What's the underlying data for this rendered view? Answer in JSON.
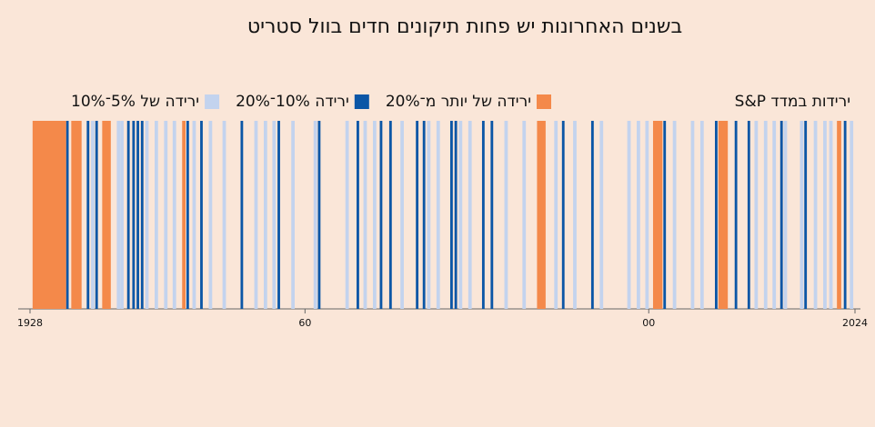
{
  "chart_data": {
    "type": "barcode",
    "title": "בשנים האחרונות יש פחות תיקונים חדים בוול סטריט",
    "legend_title": "ירידות במדד S&P",
    "xlim": [
      1928,
      2024
    ],
    "xticks": [
      1928,
      {
        "value": 1960,
        "label": "60"
      },
      {
        "value": 2000,
        "label": "00"
      },
      2024
    ],
    "series": [
      {
        "name": "ירידה של יותר מ־20%",
        "color": "#f4894a",
        "intervals": [
          [
            1928.3,
            1932.2
          ],
          [
            1932.8,
            1934.0
          ],
          [
            1936.4,
            1937.4
          ],
          [
            1945.7,
            1946.1
          ],
          [
            1987.0,
            1988.0
          ],
          [
            2000.5,
            2001.6
          ],
          [
            2008.1,
            2009.2
          ],
          [
            2021.9,
            2022.4
          ]
        ]
      },
      {
        "name": "ירידה 10%־20%",
        "color": "#0b56a6",
        "intervals": [
          [
            1932.2,
            1932.5
          ],
          [
            1934.6,
            1934.9
          ],
          [
            1935.6,
            1935.9
          ],
          [
            1939.3,
            1939.6
          ],
          [
            1939.9,
            1940.2
          ],
          [
            1940.4,
            1940.7
          ],
          [
            1940.9,
            1941.2
          ],
          [
            1946.2,
            1946.5
          ],
          [
            1947.8,
            1948.1
          ],
          [
            1952.5,
            1952.8
          ],
          [
            1956.8,
            1957.1
          ],
          [
            1961.5,
            1961.8
          ],
          [
            1966.0,
            1966.3
          ],
          [
            1968.7,
            1969.0
          ],
          [
            1969.8,
            1970.1
          ],
          [
            1972.9,
            1973.2
          ],
          [
            1973.7,
            1974.0
          ],
          [
            1976.9,
            1977.2
          ],
          [
            1977.4,
            1977.7
          ],
          [
            1980.6,
            1980.9
          ],
          [
            1981.6,
            1981.9
          ],
          [
            1989.9,
            1990.2
          ],
          [
            1993.3,
            1993.6
          ],
          [
            2001.7,
            2002.0
          ],
          [
            2007.7,
            2008.0
          ],
          [
            2010.0,
            2010.3
          ],
          [
            2011.5,
            2011.8
          ],
          [
            2015.3,
            2015.6
          ],
          [
            2018.1,
            2018.4
          ],
          [
            2022.7,
            2023.0
          ]
        ]
      },
      {
        "name": "ירידה של 5%־10%",
        "color": "#c3d3ee",
        "intervals": [
          [
            1933.5,
            1933.9
          ],
          [
            1935.1,
            1935.5
          ],
          [
            1938.1,
            1938.5
          ],
          [
            1938.5,
            1938.9
          ],
          [
            1941.4,
            1941.8
          ],
          [
            1942.5,
            1942.9
          ],
          [
            1943.6,
            1944.0
          ],
          [
            1944.6,
            1945.0
          ],
          [
            1946.9,
            1947.3
          ],
          [
            1948.8,
            1949.2
          ],
          [
            1950.4,
            1950.8
          ],
          [
            1954.1,
            1954.5
          ],
          [
            1955.2,
            1955.6
          ],
          [
            1956.2,
            1956.6
          ],
          [
            1958.4,
            1958.8
          ],
          [
            1961.0,
            1961.4
          ],
          [
            1964.7,
            1965.1
          ],
          [
            1966.8,
            1967.2
          ],
          [
            1967.9,
            1968.3
          ],
          [
            1971.1,
            1971.5
          ],
          [
            1974.2,
            1974.6
          ],
          [
            1975.3,
            1975.7
          ],
          [
            1977.9,
            1978.3
          ],
          [
            1979.0,
            1979.4
          ],
          [
            1983.2,
            1983.6
          ],
          [
            1985.3,
            1985.7
          ],
          [
            1989.0,
            1989.4
          ],
          [
            1991.2,
            1991.6
          ],
          [
            1994.3,
            1994.7
          ],
          [
            1997.5,
            1997.9
          ],
          [
            1998.6,
            1999.0
          ],
          [
            1999.6,
            2000.0
          ],
          [
            2002.8,
            2003.2
          ],
          [
            2004.9,
            2005.3
          ],
          [
            2006.0,
            2006.4
          ],
          [
            2012.3,
            2012.7
          ],
          [
            2013.4,
            2013.8
          ],
          [
            2014.4,
            2014.8
          ],
          [
            2015.7,
            2016.1
          ],
          [
            2017.6,
            2018.0
          ],
          [
            2019.2,
            2019.6
          ],
          [
            2020.3,
            2020.7
          ],
          [
            2021.0,
            2021.4
          ],
          [
            2023.4,
            2023.8
          ]
        ]
      }
    ]
  }
}
